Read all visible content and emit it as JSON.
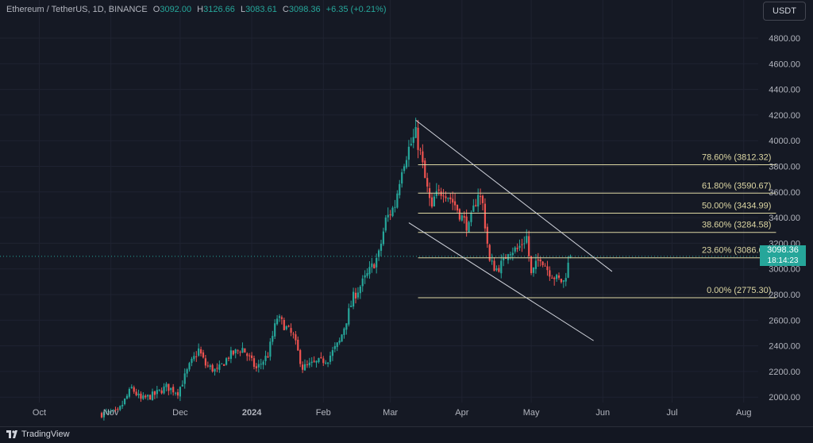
{
  "header": {
    "symbol": "Ethereum / TetherUS, 1D, BINANCE",
    "open_label": "O",
    "open": "3092.00",
    "high_label": "H",
    "high": "3126.66",
    "low_label": "L",
    "low": "3083.61",
    "close_label": "C",
    "close": "3098.36",
    "change": "+6.35 (+0.21%)"
  },
  "currency": "USDT",
  "last_price": {
    "price": "3098.36",
    "countdown": "18:14:23"
  },
  "footer": {
    "brand": "TradingView"
  },
  "colors": {
    "up": "#26a69a",
    "down": "#ef5350",
    "fib": "#ddd7a3",
    "trend": "#d1d4dc",
    "grid": "#1f2331",
    "background": "#151924"
  },
  "chart_data": {
    "type": "candlestick",
    "y_ticks": [
      "4800.00",
      "4600.00",
      "4400.00",
      "4200.00",
      "4000.00",
      "3800.00",
      "3600.00",
      "3400.00",
      "3200.00",
      "3000.00",
      "2800.00",
      "2600.00",
      "2400.00",
      "2200.00",
      "2000.00"
    ],
    "ylim": [
      1930,
      4920
    ],
    "x_ticks": [
      {
        "label": "Oct",
        "date": "2023-10-01"
      },
      {
        "label": "Nov",
        "date": "2023-11-01"
      },
      {
        "label": "Dec",
        "date": "2023-12-01"
      },
      {
        "label": "2024",
        "date": "2024-01-01",
        "bold": true
      },
      {
        "label": "Feb",
        "date": "2024-02-01"
      },
      {
        "label": "Mar",
        "date": "2024-03-01"
      },
      {
        "label": "Apr",
        "date": "2024-04-01"
      },
      {
        "label": "May",
        "date": "2024-05-01"
      },
      {
        "label": "Jun",
        "date": "2024-06-01"
      },
      {
        "label": "Jul",
        "date": "2024-07-01"
      },
      {
        "label": "Aug",
        "date": "2024-08-01"
      }
    ],
    "xlim": [
      "2023-09-14",
      "2024-08-31"
    ],
    "candles_start": "2023-10-28",
    "candles_end": "2024-05-18",
    "close_path": [
      [
        "2023-10-28",
        1870
      ],
      [
        "2023-11-04",
        1880
      ],
      [
        "2023-11-10",
        2070
      ],
      [
        "2023-11-14",
        1980
      ],
      [
        "2023-11-20",
        2020
      ],
      [
        "2023-11-25",
        2080
      ],
      [
        "2023-11-30",
        2040
      ],
      [
        "2023-12-05",
        2240
      ],
      [
        "2023-12-09",
        2370
      ],
      [
        "2023-12-12",
        2250
      ],
      [
        "2023-12-17",
        2200
      ],
      [
        "2023-12-22",
        2320
      ],
      [
        "2023-12-28",
        2380
      ],
      [
        "2024-01-03",
        2220
      ],
      [
        "2024-01-08",
        2330
      ],
      [
        "2024-01-12",
        2620
      ],
      [
        "2024-01-15",
        2560
      ],
      [
        "2024-01-19",
        2470
      ],
      [
        "2024-01-23",
        2230
      ],
      [
        "2024-01-28",
        2260
      ],
      [
        "2024-02-03",
        2300
      ],
      [
        "2024-02-08",
        2430
      ],
      [
        "2024-02-14",
        2780
      ],
      [
        "2024-02-20",
        2950
      ],
      [
        "2024-02-25",
        3110
      ],
      [
        "2024-02-28",
        3380
      ],
      [
        "2024-03-03",
        3500
      ],
      [
        "2024-03-06",
        3800
      ],
      [
        "2024-03-09",
        3940
      ],
      [
        "2024-03-12",
        4050
      ],
      [
        "2024-03-14",
        3900
      ],
      [
        "2024-03-16",
        3700
      ],
      [
        "2024-03-19",
        3450
      ],
      [
        "2024-03-20",
        3550
      ],
      [
        "2024-03-24",
        3620
      ],
      [
        "2024-03-27",
        3550
      ],
      [
        "2024-03-29",
        3500
      ],
      [
        "2024-04-01",
        3400
      ],
      [
        "2024-04-04",
        3320
      ],
      [
        "2024-04-08",
        3600
      ],
      [
        "2024-04-10",
        3500
      ],
      [
        "2024-04-13",
        3050
      ],
      [
        "2024-04-16",
        3000
      ],
      [
        "2024-04-19",
        3050
      ],
      [
        "2024-04-21",
        3150
      ],
      [
        "2024-04-25",
        3150
      ],
      [
        "2024-04-29",
        3250
      ],
      [
        "2024-05-01",
        2950
      ],
      [
        "2024-05-05",
        3100
      ],
      [
        "2024-05-08",
        3000
      ],
      [
        "2024-05-12",
        2920
      ],
      [
        "2024-05-15",
        2900
      ],
      [
        "2024-05-18",
        3098
      ]
    ],
    "fib_levels": [
      {
        "label": "78.60% (3812.32)",
        "price": 3812.32
      },
      {
        "label": "61.80% (3590.67)",
        "price": 3590.67
      },
      {
        "label": "50.00% (3434.99)",
        "price": 3434.99
      },
      {
        "label": "38.60% (3284.58)",
        "price": 3284.58
      },
      {
        "label": "23.60% (3086.67)",
        "price": 3086.67
      },
      {
        "label": "0.00% (2775.30)",
        "price": 2775.3
      }
    ],
    "fib_range": [
      "2024-03-13",
      "2024-08-15"
    ],
    "channel_lines": [
      {
        "from": [
          "2024-03-12",
          4160
        ],
        "to": [
          "2024-06-05",
          2980
        ]
      },
      {
        "from": [
          "2024-03-09",
          3360
        ],
        "to": [
          "2024-05-28",
          2440
        ]
      }
    ]
  }
}
